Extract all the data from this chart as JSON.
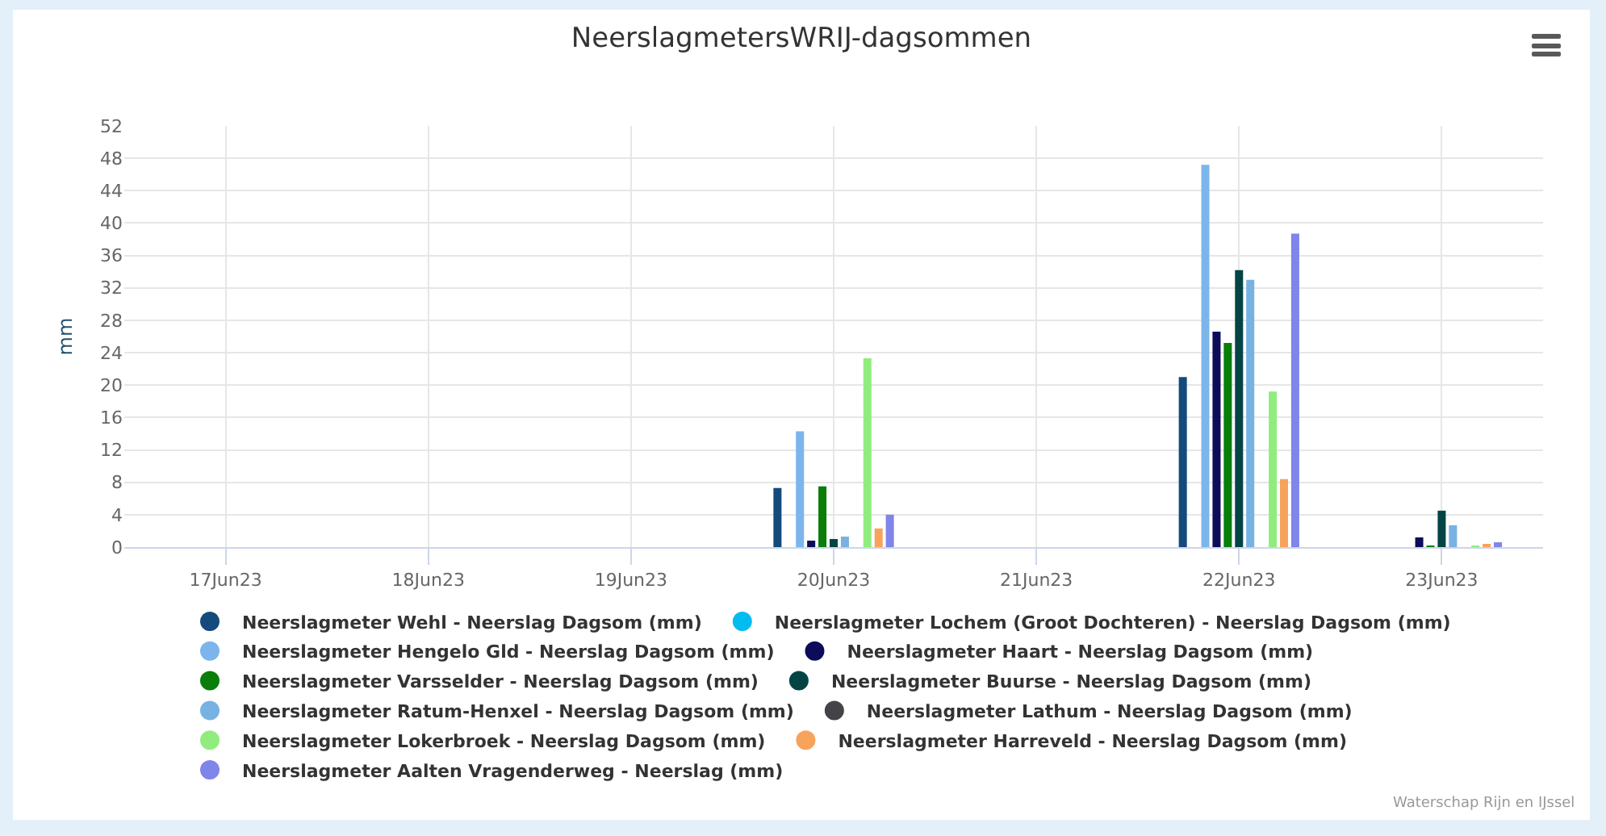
{
  "chart_data": {
    "type": "bar",
    "title": "NeerslagmetersWRIJ-dagsommen",
    "ylabel": "mm",
    "categories": [
      "17Jun23",
      "18Jun23",
      "19Jun23",
      "20Jun23",
      "21Jun23",
      "22Jun23",
      "23Jun23"
    ],
    "series": [
      {
        "name": "Neerslagmeter Wehl - Neerslag Dagsom (mm)",
        "color": "#144a7c",
        "values": [
          null,
          null,
          null,
          7.3,
          null,
          21.0,
          null
        ]
      },
      {
        "name": "Neerslagmeter Lochem (Groot Dochteren) - Neerslag Dagsom (mm)",
        "color": "#00bcef",
        "values": [
          null,
          null,
          null,
          null,
          null,
          null,
          null
        ]
      },
      {
        "name": "Neerslagmeter Hengelo Gld - Neerslag Dagsom (mm)",
        "color": "#7cb5ec",
        "values": [
          null,
          null,
          null,
          14.3,
          null,
          47.2,
          null
        ]
      },
      {
        "name": "Neerslagmeter Haart - Neerslag Dagsom (mm)",
        "color": "#0c0c5a",
        "values": [
          null,
          null,
          null,
          0.8,
          null,
          26.6,
          1.2
        ]
      },
      {
        "name": "Neerslagmeter Varsselder - Neerslag Dagsom (mm)",
        "color": "#0a7d0a",
        "values": [
          null,
          null,
          null,
          7.5,
          null,
          25.2,
          0.2
        ]
      },
      {
        "name": "Neerslagmeter Buurse - Neerslag Dagsom (mm)",
        "color": "#054444",
        "values": [
          null,
          null,
          null,
          1.0,
          null,
          34.2,
          4.5
        ]
      },
      {
        "name": "Neerslagmeter Ratum-Henxel - Neerslag Dagsom (mm)",
        "color": "#78b2e2",
        "values": [
          null,
          null,
          null,
          1.3,
          null,
          33.0,
          2.7
        ]
      },
      {
        "name": "Neerslagmeter Lathum - Neerslag Dagsom (mm)",
        "color": "#434348",
        "values": [
          null,
          null,
          null,
          null,
          null,
          null,
          null
        ]
      },
      {
        "name": "Neerslagmeter Lokerbroek - Neerslag Dagsom (mm)",
        "color": "#90ed7d",
        "values": [
          null,
          null,
          null,
          23.3,
          null,
          19.2,
          0.1
        ]
      },
      {
        "name": "Neerslagmeter Harreveld - Neerslag Dagsom (mm)",
        "color": "#f7a35c",
        "values": [
          null,
          null,
          null,
          2.3,
          null,
          8.4,
          0.4
        ]
      },
      {
        "name": "Neerslagmeter Aalten Vragenderweg - Neerslag (mm)",
        "color": "#8085e9",
        "values": [
          null,
          null,
          null,
          4.0,
          null,
          38.7,
          0.6
        ]
      }
    ],
    "ylim": [
      0,
      52
    ],
    "yticks": [
      0,
      4,
      8,
      12,
      16,
      20,
      24,
      28,
      32,
      36,
      40,
      44,
      48,
      52
    ],
    "grid": true,
    "legend": "bottom",
    "annotations": [
      "Waterschap Rijn en IJssel"
    ]
  }
}
